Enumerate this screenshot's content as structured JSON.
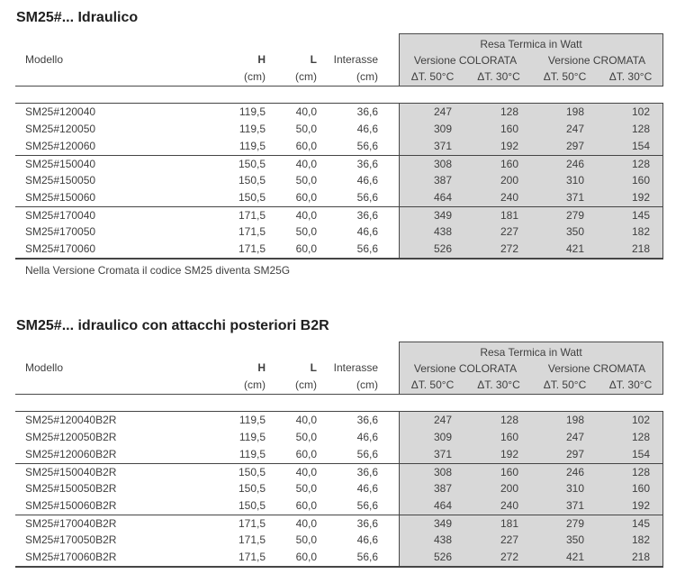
{
  "colors": {
    "panel_gray": "#d8d8d8",
    "rule_dark": "#4a4a4a",
    "text": "#3f3f3f"
  },
  "tables": [
    {
      "title": "SM25#... Idraulico",
      "header": {
        "modello": "Modello",
        "h": "H",
        "l": "L",
        "interasse": "Interasse",
        "unit": "(cm)",
        "watt_group": "Resa Termica in Watt",
        "versione_colorata": "Versione COLORATA",
        "versione_cromata": "Versione CROMATA",
        "dt50": "ΔT. 50°C",
        "dt30": "ΔT. 30°C"
      },
      "rows": [
        {
          "model": "SM25#120040",
          "h": "119,5",
          "l": "40,0",
          "int": "36,6",
          "c50": "247",
          "c30": "128",
          "k50": "198",
          "k30": "102"
        },
        {
          "model": "SM25#120050",
          "h": "119,5",
          "l": "50,0",
          "int": "46,6",
          "c50": "309",
          "c30": "160",
          "k50": "247",
          "k30": "128"
        },
        {
          "model": "SM25#120060",
          "h": "119,5",
          "l": "60,0",
          "int": "56,6",
          "c50": "371",
          "c30": "192",
          "k50": "297",
          "k30": "154"
        },
        {
          "model": "SM25#150040",
          "h": "150,5",
          "l": "40,0",
          "int": "36,6",
          "c50": "308",
          "c30": "160",
          "k50": "246",
          "k30": "128"
        },
        {
          "model": "SM25#150050",
          "h": "150,5",
          "l": "50,0",
          "int": "46,6",
          "c50": "387",
          "c30": "200",
          "k50": "310",
          "k30": "160"
        },
        {
          "model": "SM25#150060",
          "h": "150,5",
          "l": "60,0",
          "int": "56,6",
          "c50": "464",
          "c30": "240",
          "k50": "371",
          "k30": "192"
        },
        {
          "model": "SM25#170040",
          "h": "171,5",
          "l": "40,0",
          "int": "36,6",
          "c50": "349",
          "c30": "181",
          "k50": "279",
          "k30": "145"
        },
        {
          "model": "SM25#170050",
          "h": "171,5",
          "l": "50,0",
          "int": "46,6",
          "c50": "438",
          "c30": "227",
          "k50": "350",
          "k30": "182"
        },
        {
          "model": "SM25#170060",
          "h": "171,5",
          "l": "60,0",
          "int": "56,6",
          "c50": "526",
          "c30": "272",
          "k50": "421",
          "k30": "218"
        }
      ],
      "footnote": "Nella Versione Cromata il codice SM25 diventa SM25G"
    },
    {
      "title": "SM25#... idraulico con attacchi posteriori B2R",
      "header": {
        "modello": "Modello",
        "h": "H",
        "l": "L",
        "interasse": "Interasse",
        "unit": "(cm)",
        "watt_group": "Resa Termica in Watt",
        "versione_colorata": "Versione COLORATA",
        "versione_cromata": "Versione CROMATA",
        "dt50": "ΔT. 50°C",
        "dt30": "ΔT. 30°C"
      },
      "rows": [
        {
          "model": "SM25#120040B2R",
          "h": "119,5",
          "l": "40,0",
          "int": "36,6",
          "c50": "247",
          "c30": "128",
          "k50": "198",
          "k30": "102"
        },
        {
          "model": "SM25#120050B2R",
          "h": "119,5",
          "l": "50,0",
          "int": "46,6",
          "c50": "309",
          "c30": "160",
          "k50": "247",
          "k30": "128"
        },
        {
          "model": "SM25#120060B2R",
          "h": "119,5",
          "l": "60,0",
          "int": "56,6",
          "c50": "371",
          "c30": "192",
          "k50": "297",
          "k30": "154"
        },
        {
          "model": "SM25#150040B2R",
          "h": "150,5",
          "l": "40,0",
          "int": "36,6",
          "c50": "308",
          "c30": "160",
          "k50": "246",
          "k30": "128"
        },
        {
          "model": "SM25#150050B2R",
          "h": "150,5",
          "l": "50,0",
          "int": "46,6",
          "c50": "387",
          "c30": "200",
          "k50": "310",
          "k30": "160"
        },
        {
          "model": "SM25#150060B2R",
          "h": "150,5",
          "l": "60,0",
          "int": "56,6",
          "c50": "464",
          "c30": "240",
          "k50": "371",
          "k30": "192"
        },
        {
          "model": "SM25#170040B2R",
          "h": "171,5",
          "l": "40,0",
          "int": "36,6",
          "c50": "349",
          "c30": "181",
          "k50": "279",
          "k30": "145"
        },
        {
          "model": "SM25#170050B2R",
          "h": "171,5",
          "l": "50,0",
          "int": "46,6",
          "c50": "438",
          "c30": "227",
          "k50": "350",
          "k30": "182"
        },
        {
          "model": "SM25#170060B2R",
          "h": "171,5",
          "l": "60,0",
          "int": "56,6",
          "c50": "526",
          "c30": "272",
          "k50": "421",
          "k30": "218"
        }
      ]
    }
  ]
}
